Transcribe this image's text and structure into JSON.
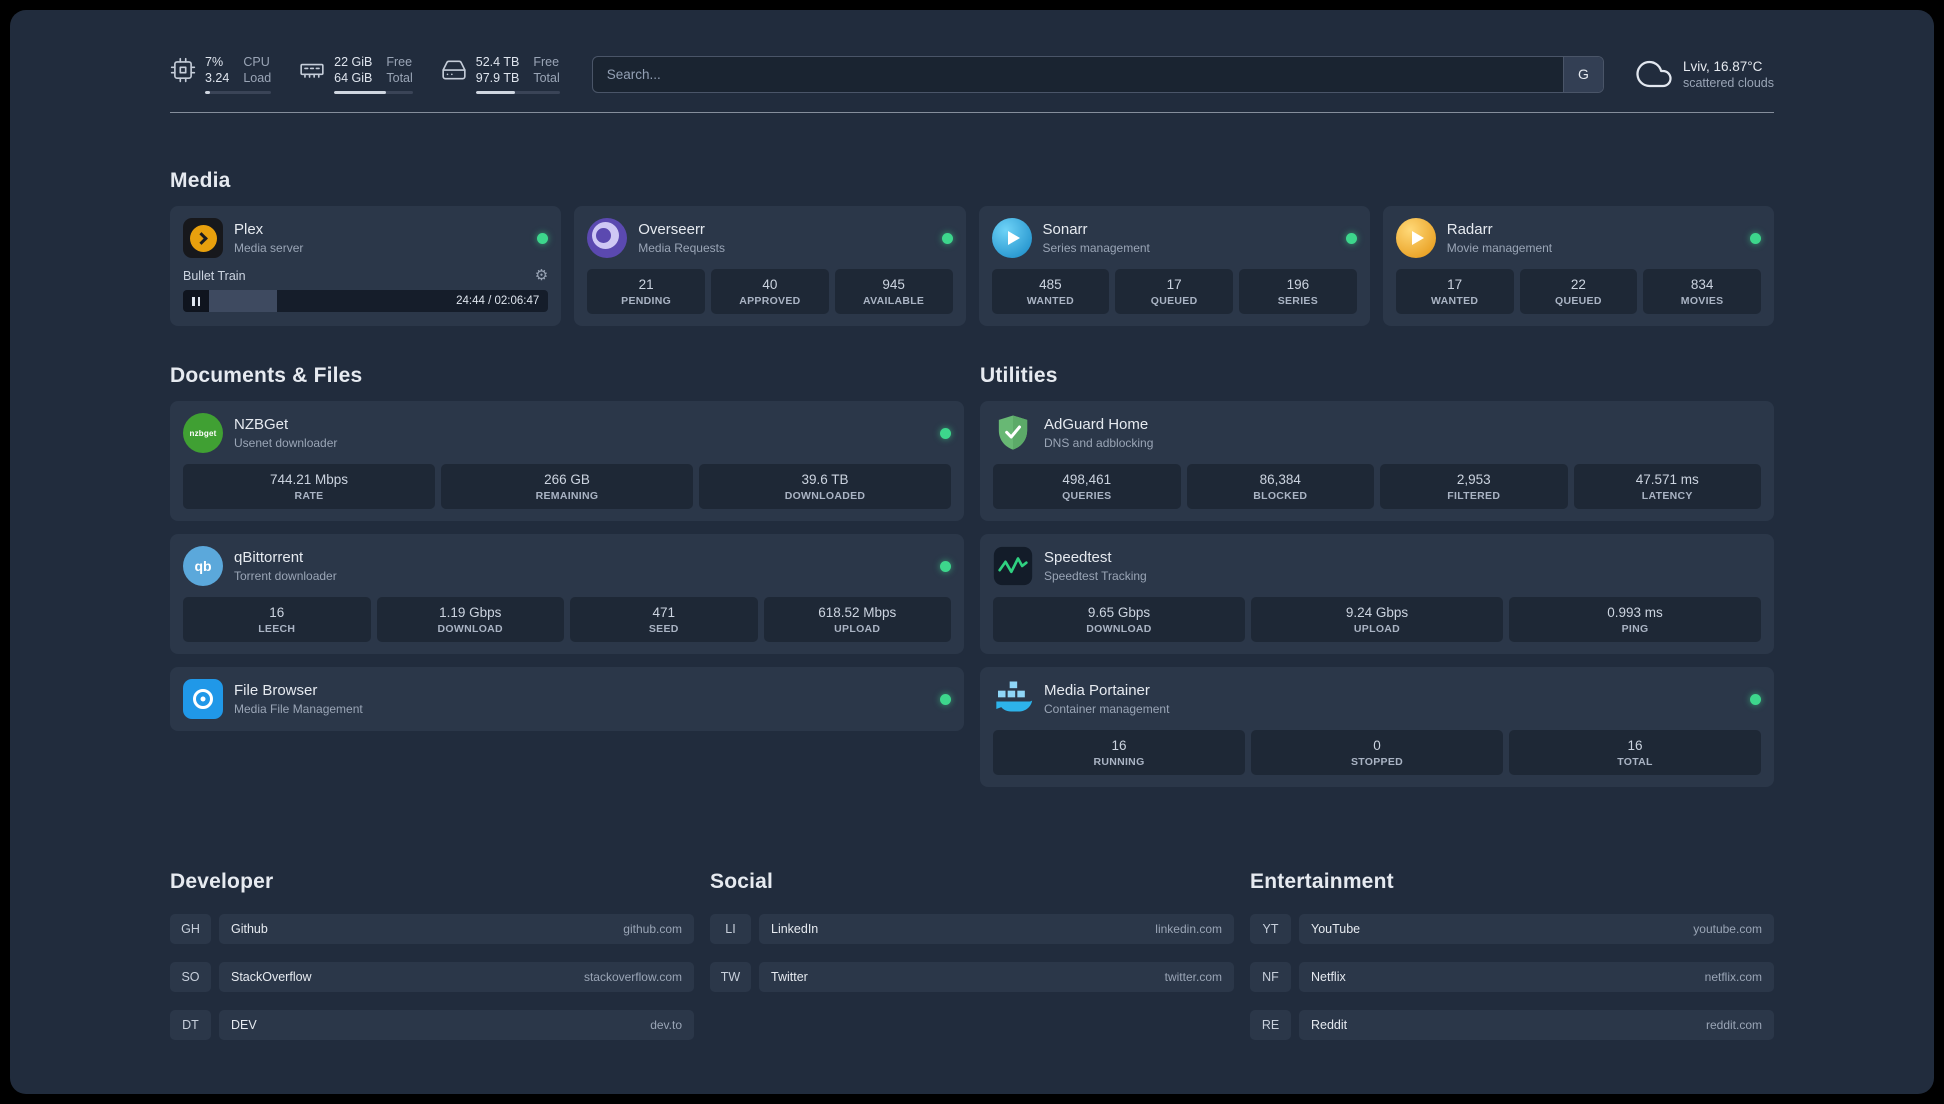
{
  "colors": {
    "background": "#212c3d",
    "card": "#2b3749",
    "stat_box": "#1e2836",
    "status_online": "#3dd68c",
    "plex_amber": "#e8a00d",
    "sonarr_blue": "#1587c5",
    "radarr_amber": "#e49310",
    "overseerr_purple": "#5b49b0",
    "nzbget_green": "#40a033",
    "qbittorrent_blue": "#5ba8db",
    "filebrowser_blue": "#2098e8",
    "adguard_green": "#68b874",
    "speedtest_green": "#2fd181",
    "portainer_blue": "#2db3ea"
  },
  "icons": {
    "gear": "⚙"
  },
  "topbar": {
    "cpu": {
      "icon": "cpu-icon",
      "value": "7%",
      "load": "3.24",
      "label_top": "CPU",
      "label_bottom": "Load",
      "progress": 7
    },
    "memory": {
      "icon": "memory-icon",
      "free": "22 GiB",
      "total": "64 GiB",
      "label_top": "Free",
      "label_bottom": "Total",
      "progress": 66
    },
    "disk": {
      "icon": "disk-icon",
      "free": "52.4 TB",
      "total": "97.9 TB",
      "label_top": "Free",
      "label_bottom": "Total",
      "progress": 47
    },
    "search": {
      "placeholder": "Search...",
      "provider_label": "G"
    },
    "weather": {
      "icon": "cloud-icon",
      "location": "Lviv, 16.87°C",
      "condition": "scattered clouds"
    }
  },
  "media": {
    "title": "Media",
    "plex": {
      "icon": "plex-icon",
      "name": "Plex",
      "desc": "Media server",
      "status_online": true,
      "now_playing": "Bullet Train",
      "time": "24:44 / 02:06:47",
      "progress": 20
    },
    "overseerr": {
      "icon": "overseerr-icon",
      "name": "Overseerr",
      "desc": "Media Requests",
      "status_online": true,
      "stats": [
        {
          "value": "21",
          "label": "PENDING"
        },
        {
          "value": "40",
          "label": "APPROVED"
        },
        {
          "value": "945",
          "label": "AVAILABLE"
        }
      ]
    },
    "sonarr": {
      "icon": "sonarr-icon",
      "name": "Sonarr",
      "desc": "Series management",
      "status_online": true,
      "stats": [
        {
          "value": "485",
          "label": "WANTED"
        },
        {
          "value": "17",
          "label": "QUEUED"
        },
        {
          "value": "196",
          "label": "SERIES"
        }
      ]
    },
    "radarr": {
      "icon": "radarr-icon",
      "name": "Radarr",
      "desc": "Movie management",
      "status_online": true,
      "stats": [
        {
          "value": "17",
          "label": "WANTED"
        },
        {
          "value": "22",
          "label": "QUEUED"
        },
        {
          "value": "834",
          "label": "MOVIES"
        }
      ]
    }
  },
  "documents": {
    "title": "Documents & Files",
    "nzbget": {
      "icon": "nzbget-icon",
      "icon_text": "nzbget",
      "name": "NZBGet",
      "desc": "Usenet downloader",
      "status_online": true,
      "stats": [
        {
          "value": "744.21 Mbps",
          "label": "RATE"
        },
        {
          "value": "266 GB",
          "label": "REMAINING"
        },
        {
          "value": "39.6 TB",
          "label": "DOWNLOADED"
        }
      ]
    },
    "qbittorrent": {
      "icon": "qbittorrent-icon",
      "icon_text": "qb",
      "name": "qBittorrent",
      "desc": "Torrent downloader",
      "status_online": true,
      "stats": [
        {
          "value": "16",
          "label": "LEECH"
        },
        {
          "value": "1.19 Gbps",
          "label": "DOWNLOAD"
        },
        {
          "value": "471",
          "label": "SEED"
        },
        {
          "value": "618.52 Mbps",
          "label": "UPLOAD"
        }
      ]
    },
    "filebrowser": {
      "icon": "filebrowser-icon",
      "name": "File Browser",
      "desc": "Media File Management",
      "status_online": true
    }
  },
  "utilities": {
    "title": "Utilities",
    "adguard": {
      "icon": "adguard-icon",
      "name": "AdGuard Home",
      "desc": "DNS and adblocking",
      "status_online": false,
      "stats": [
        {
          "value": "498,461",
          "label": "QUERIES"
        },
        {
          "value": "86,384",
          "label": "BLOCKED"
        },
        {
          "value": "2,953",
          "label": "FILTERED"
        },
        {
          "value": "47.571 ms",
          "label": "LATENCY"
        }
      ]
    },
    "speedtest": {
      "icon": "speedtest-icon",
      "name": "Speedtest",
      "desc": "Speedtest Tracking",
      "status_online": false,
      "stats": [
        {
          "value": "9.65 Gbps",
          "label": "DOWNLOAD"
        },
        {
          "value": "9.24 Gbps",
          "label": "UPLOAD"
        },
        {
          "value": "0.993 ms",
          "label": "PING"
        }
      ]
    },
    "portainer": {
      "icon": "portainer-icon",
      "name": "Media Portainer",
      "desc": "Container management",
      "status_online": true,
      "stats": [
        {
          "value": "16",
          "label": "RUNNING"
        },
        {
          "value": "0",
          "label": "STOPPED"
        },
        {
          "value": "16",
          "label": "TOTAL"
        }
      ]
    }
  },
  "bookmarks": [
    {
      "title": "Developer",
      "items": [
        {
          "abbr": "GH",
          "name": "Github",
          "domain": "github.com"
        },
        {
          "abbr": "SO",
          "name": "StackOverflow",
          "domain": "stackoverflow.com"
        },
        {
          "abbr": "DT",
          "name": "DEV",
          "domain": "dev.to"
        }
      ]
    },
    {
      "title": "Social",
      "items": [
        {
          "abbr": "LI",
          "name": "LinkedIn",
          "domain": "linkedin.com"
        },
        {
          "abbr": "TW",
          "name": "Twitter",
          "domain": "twitter.com"
        }
      ]
    },
    {
      "title": "Entertainment",
      "items": [
        {
          "abbr": "YT",
          "name": "YouTube",
          "domain": "youtube.com"
        },
        {
          "abbr": "NF",
          "name": "Netflix",
          "domain": "netflix.com"
        },
        {
          "abbr": "RE",
          "name": "Reddit",
          "domain": "reddit.com"
        }
      ]
    }
  ]
}
